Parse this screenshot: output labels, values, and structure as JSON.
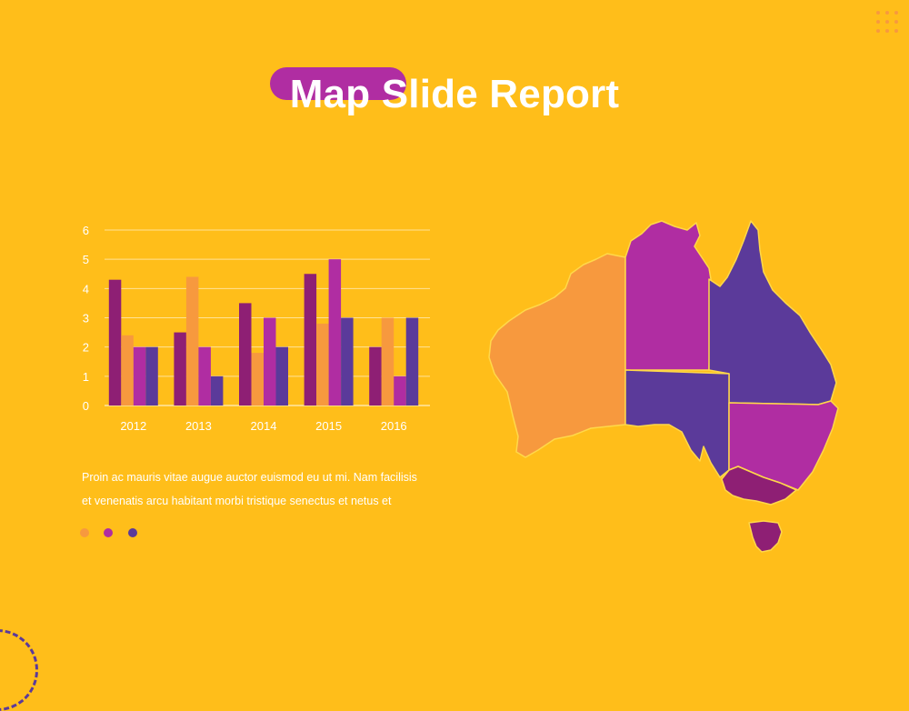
{
  "slide": {
    "title": "Map Slide Report",
    "paragraph_lines": [
      "Proin ac mauris vitae augue auctor euismod eu ut mi. Nam facilisis",
      "et venenatis arcu habitant morbi tristique senectus et netus et"
    ]
  },
  "colors": {
    "background": "#FFBE1A",
    "series": [
      "#8E1F74",
      "#F7993E",
      "#B02DA2",
      "#5B3A9A"
    ],
    "map_border": "#FFD84A"
  },
  "legend_dots": [
    "#F7993E",
    "#B02DA2",
    "#5B3A9A"
  ],
  "chart_data": {
    "type": "bar",
    "title": "",
    "xlabel": "",
    "ylabel": "",
    "categories": [
      "2012",
      "2013",
      "2014",
      "2015",
      "2016"
    ],
    "ylim": [
      0,
      6
    ],
    "yticks": [
      0,
      1,
      2,
      3,
      4,
      5,
      6
    ],
    "grid": true,
    "series": [
      {
        "values": [
          4.3,
          2.5,
          3.5,
          4.5,
          2.0
        ]
      },
      {
        "values": [
          2.4,
          4.4,
          1.8,
          2.8,
          3.0
        ]
      },
      {
        "values": [
          2.0,
          2.0,
          3.0,
          5.0,
          1.0
        ]
      },
      {
        "values": [
          2.0,
          1.0,
          2.0,
          3.0,
          3.0
        ]
      }
    ]
  },
  "map": {
    "regions": [
      {
        "name_icon": "western-australia-region",
        "color": "#F7993E"
      },
      {
        "name_icon": "northern-territory-region",
        "color": "#B02DA2"
      },
      {
        "name_icon": "queensland-region",
        "color": "#5B3A9A"
      },
      {
        "name_icon": "south-australia-region",
        "color": "#5B3A9A"
      },
      {
        "name_icon": "new-south-wales-region",
        "color": "#B02DA2"
      },
      {
        "name_icon": "victoria-region",
        "color": "#8E1F74"
      },
      {
        "name_icon": "tasmania-region",
        "color": "#8E1F74"
      }
    ]
  }
}
